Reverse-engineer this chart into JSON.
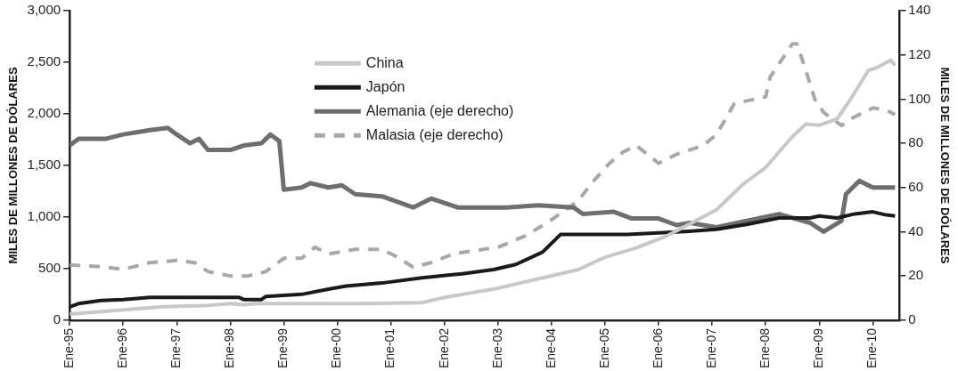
{
  "chart_data": {
    "type": "line",
    "ylabel": "MILES DE MILLONES DE DÓLARES",
    "y2label": "MILES DE MILLONES DE DÓLARES",
    "xlim": [
      "1995-01",
      "2010-07"
    ],
    "xticks": [
      {
        "value": "1995-01",
        "label": "Ene-95"
      },
      {
        "value": "1996-01",
        "label": "Ene-96"
      },
      {
        "value": "1997-01",
        "label": "Ene-97"
      },
      {
        "value": "1998-01",
        "label": "Ene-98"
      },
      {
        "value": "1999-01",
        "label": "Ene-99"
      },
      {
        "value": "2000-01",
        "label": "Ene-00"
      },
      {
        "value": "2001-01",
        "label": "Ene-01"
      },
      {
        "value": "2002-01",
        "label": "Ene-02"
      },
      {
        "value": "2003-01",
        "label": "Ene-03"
      },
      {
        "value": "2004-01",
        "label": "Ene-04"
      },
      {
        "value": "2005-01",
        "label": "Ene-05"
      },
      {
        "value": "2006-01",
        "label": "Ene-06"
      },
      {
        "value": "2007-01",
        "label": "Ene-07"
      },
      {
        "value": "2008-01",
        "label": "Ene-08"
      },
      {
        "value": "2009-01",
        "label": "Ene-09"
      },
      {
        "value": "2010-01",
        "label": "Ene-10"
      }
    ],
    "ylim": [
      0,
      3000
    ],
    "yticks": [
      0,
      500,
      {
        "value": 1000,
        "label": "1,000"
      },
      {
        "value": 1500,
        "label": "1,500"
      },
      {
        "value": 2000,
        "label": "2,000"
      },
      {
        "value": 2500,
        "label": "2,500"
      },
      {
        "value": 3000,
        "label": "3,000"
      }
    ],
    "y2lim": [
      0,
      140
    ],
    "y2ticks": [
      0,
      20,
      40,
      60,
      80,
      100,
      120,
      140
    ],
    "grid": false,
    "legend": "top",
    "line_style": "solid",
    "series": [
      {
        "name": "China",
        "color": "#c8c8c8",
        "x": [
          "1995-01",
          "1995-10",
          "1996-10",
          "1997-07",
          "1998-01",
          "1998-04",
          "1998-07",
          "2000-06",
          "2001-08",
          "2002-01",
          "2003-01",
          "2004-01",
          "2004-07",
          "2005-01",
          "2005-08",
          "2006-03",
          "2007-02",
          "2007-08",
          "2008-01",
          "2008-07",
          "2008-10",
          "2009-01",
          "2009-05",
          "2009-08",
          "2009-12",
          "2010-02",
          "2010-05",
          "2010-06"
        ],
        "values": [
          60,
          90,
          130,
          140,
          160,
          150,
          160,
          160,
          170,
          220,
          310,
          430,
          490,
          610,
          700,
          820,
          1070,
          1320,
          1480,
          1780,
          1900,
          1890,
          1950,
          2140,
          2420,
          2450,
          2520,
          2470
        ]
      },
      {
        "name": "Japón",
        "color": "#1a1a1a",
        "x": [
          "1995-01",
          "1995-03",
          "1995-08",
          "1996-01",
          "1996-07",
          "1998-03",
          "1998-04",
          "1998-08",
          "1998-09",
          "1999-05",
          "1999-11",
          "2000-03",
          "2000-11",
          "2001-08",
          "2002-05",
          "2002-12",
          "2003-05",
          "2003-11",
          "2004-03",
          "2005-06",
          "2006-07",
          "2007-02",
          "2007-09",
          "2008-04",
          "2008-11",
          "2009-01",
          "2009-05",
          "2009-09",
          "2010-01",
          "2010-04",
          "2010-06"
        ],
        "values": [
          130,
          160,
          190,
          200,
          220,
          220,
          200,
          200,
          230,
          250,
          300,
          330,
          360,
          410,
          450,
          490,
          540,
          660,
          830,
          830,
          860,
          880,
          930,
          990,
          990,
          1010,
          990,
          1030,
          1050,
          1020,
          1010
        ]
      },
      {
        "name": "Alemania (eje derecho)",
        "color": "#6e6e6e",
        "axis": "y2",
        "x": [
          "1995-01",
          "1995-03",
          "1995-09",
          "1996-01",
          "1996-07",
          "1996-11",
          "1997-01",
          "1997-04",
          "1997-06",
          "1997-08",
          "1998-01",
          "1998-04",
          "1998-08",
          "1998-10",
          "1998-12",
          "1999-01",
          "1999-05",
          "1999-07",
          "1999-11",
          "2000-02",
          "2000-05",
          "2000-11",
          "2001-06",
          "2001-10",
          "2002-04",
          "2003-03",
          "2003-10",
          "2004-06",
          "2004-08",
          "2005-03",
          "2005-07",
          "2006-01",
          "2006-05",
          "2006-08",
          "2007-02",
          "2007-09",
          "2008-04",
          "2008-11",
          "2009-02",
          "2009-06",
          "2009-07",
          "2009-10",
          "2010-01",
          "2010-06"
        ],
        "values": [
          79,
          82,
          82,
          84,
          86,
          87,
          84,
          80,
          82,
          77,
          77,
          79,
          80,
          84,
          81,
          59,
          60,
          62,
          60,
          61,
          57,
          56,
          51,
          55,
          51,
          51,
          52,
          51,
          48,
          49,
          46,
          46,
          43,
          44,
          42,
          45,
          48,
          44,
          40,
          45,
          57,
          63,
          60,
          60
        ]
      },
      {
        "name": "Malasia (eje derecho)",
        "color": "#a8a8a8",
        "axis": "y2",
        "line_style": "dashed",
        "x": [
          "1995-01",
          "1995-09",
          "1996-01",
          "1996-07",
          "1997-01",
          "1997-05",
          "1997-08",
          "1998-01",
          "1998-05",
          "1998-09",
          "1999-01",
          "1999-05",
          "1999-08",
          "1999-11",
          "2000-05",
          "2000-11",
          "2001-02",
          "2001-06",
          "2001-10",
          "2002-03",
          "2003-01",
          "2003-07",
          "2003-12",
          "2004-07",
          "2004-10",
          "2005-02",
          "2005-05",
          "2005-08",
          "2006-01",
          "2006-05",
          "2006-11",
          "2007-02",
          "2007-06",
          "2008-01",
          "2008-02",
          "2008-07",
          "2008-08",
          "2008-10",
          "2008-12",
          "2009-02",
          "2009-06",
          "2009-08",
          "2010-01",
          "2010-04",
          "2010-06"
        ],
        "values": [
          25,
          24,
          23,
          26,
          27,
          26,
          22,
          20,
          20,
          22,
          28,
          28,
          33,
          30,
          32,
          32,
          29,
          24,
          26,
          30,
          33,
          38,
          44,
          54,
          62,
          71,
          76,
          79,
          71,
          75,
          79,
          84,
          98,
          101,
          110,
          125,
          125,
          113,
          100,
          94,
          88,
          91,
          96,
          95,
          93
        ]
      }
    ]
  }
}
